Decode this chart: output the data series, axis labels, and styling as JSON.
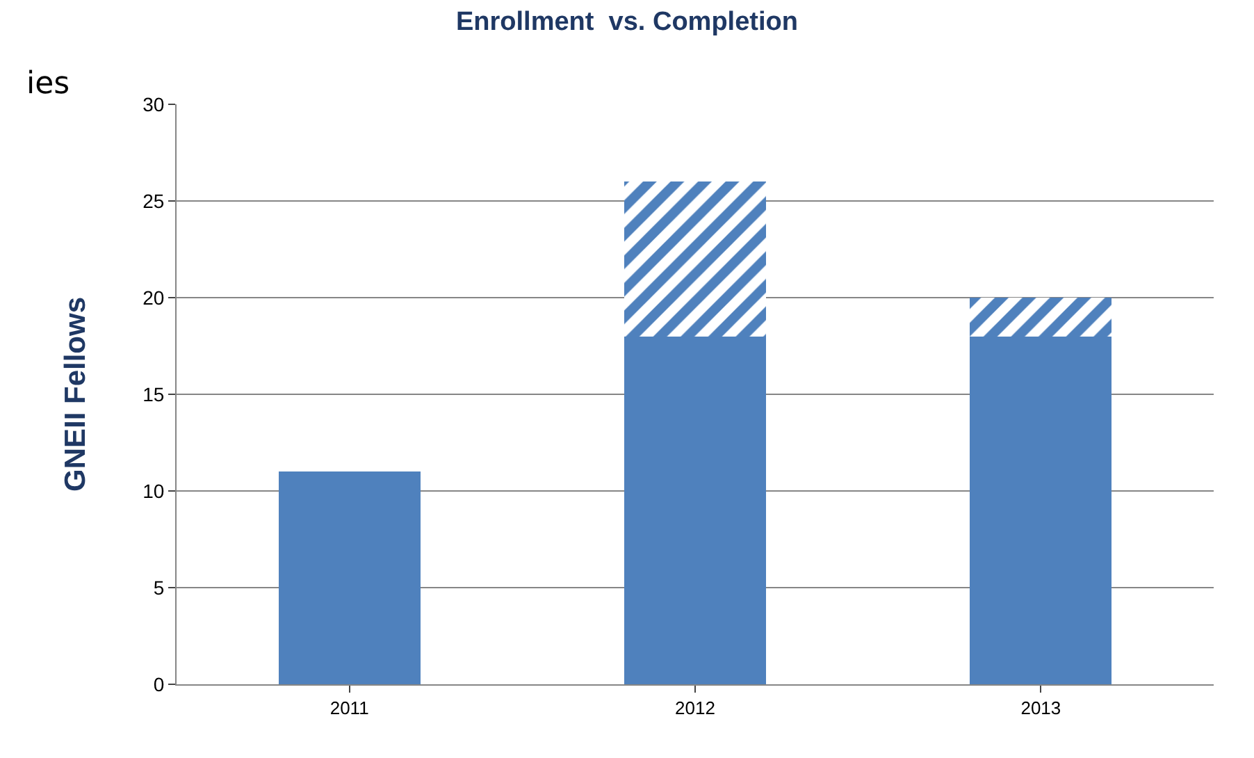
{
  "chart_data": {
    "type": "bar",
    "title": "Enrollment  vs. Completion",
    "ylabel": "GNEII Fellows",
    "categories": [
      "2011",
      "2012",
      "2013"
    ],
    "stacked": true,
    "series": [
      {
        "color": "#4f81bd",
        "values": [
          11,
          18,
          18
        ]
      },
      {
        "color": "#4f81bd",
        "values": [
          0,
          8,
          2
        ]
      }
    ],
    "ylim": [
      0,
      30
    ],
    "yticks": [
      0,
      5,
      10,
      15,
      20,
      25,
      30
    ],
    "grid": "y",
    "legend": false,
    "annotations": [
      "ies"
    ]
  }
}
